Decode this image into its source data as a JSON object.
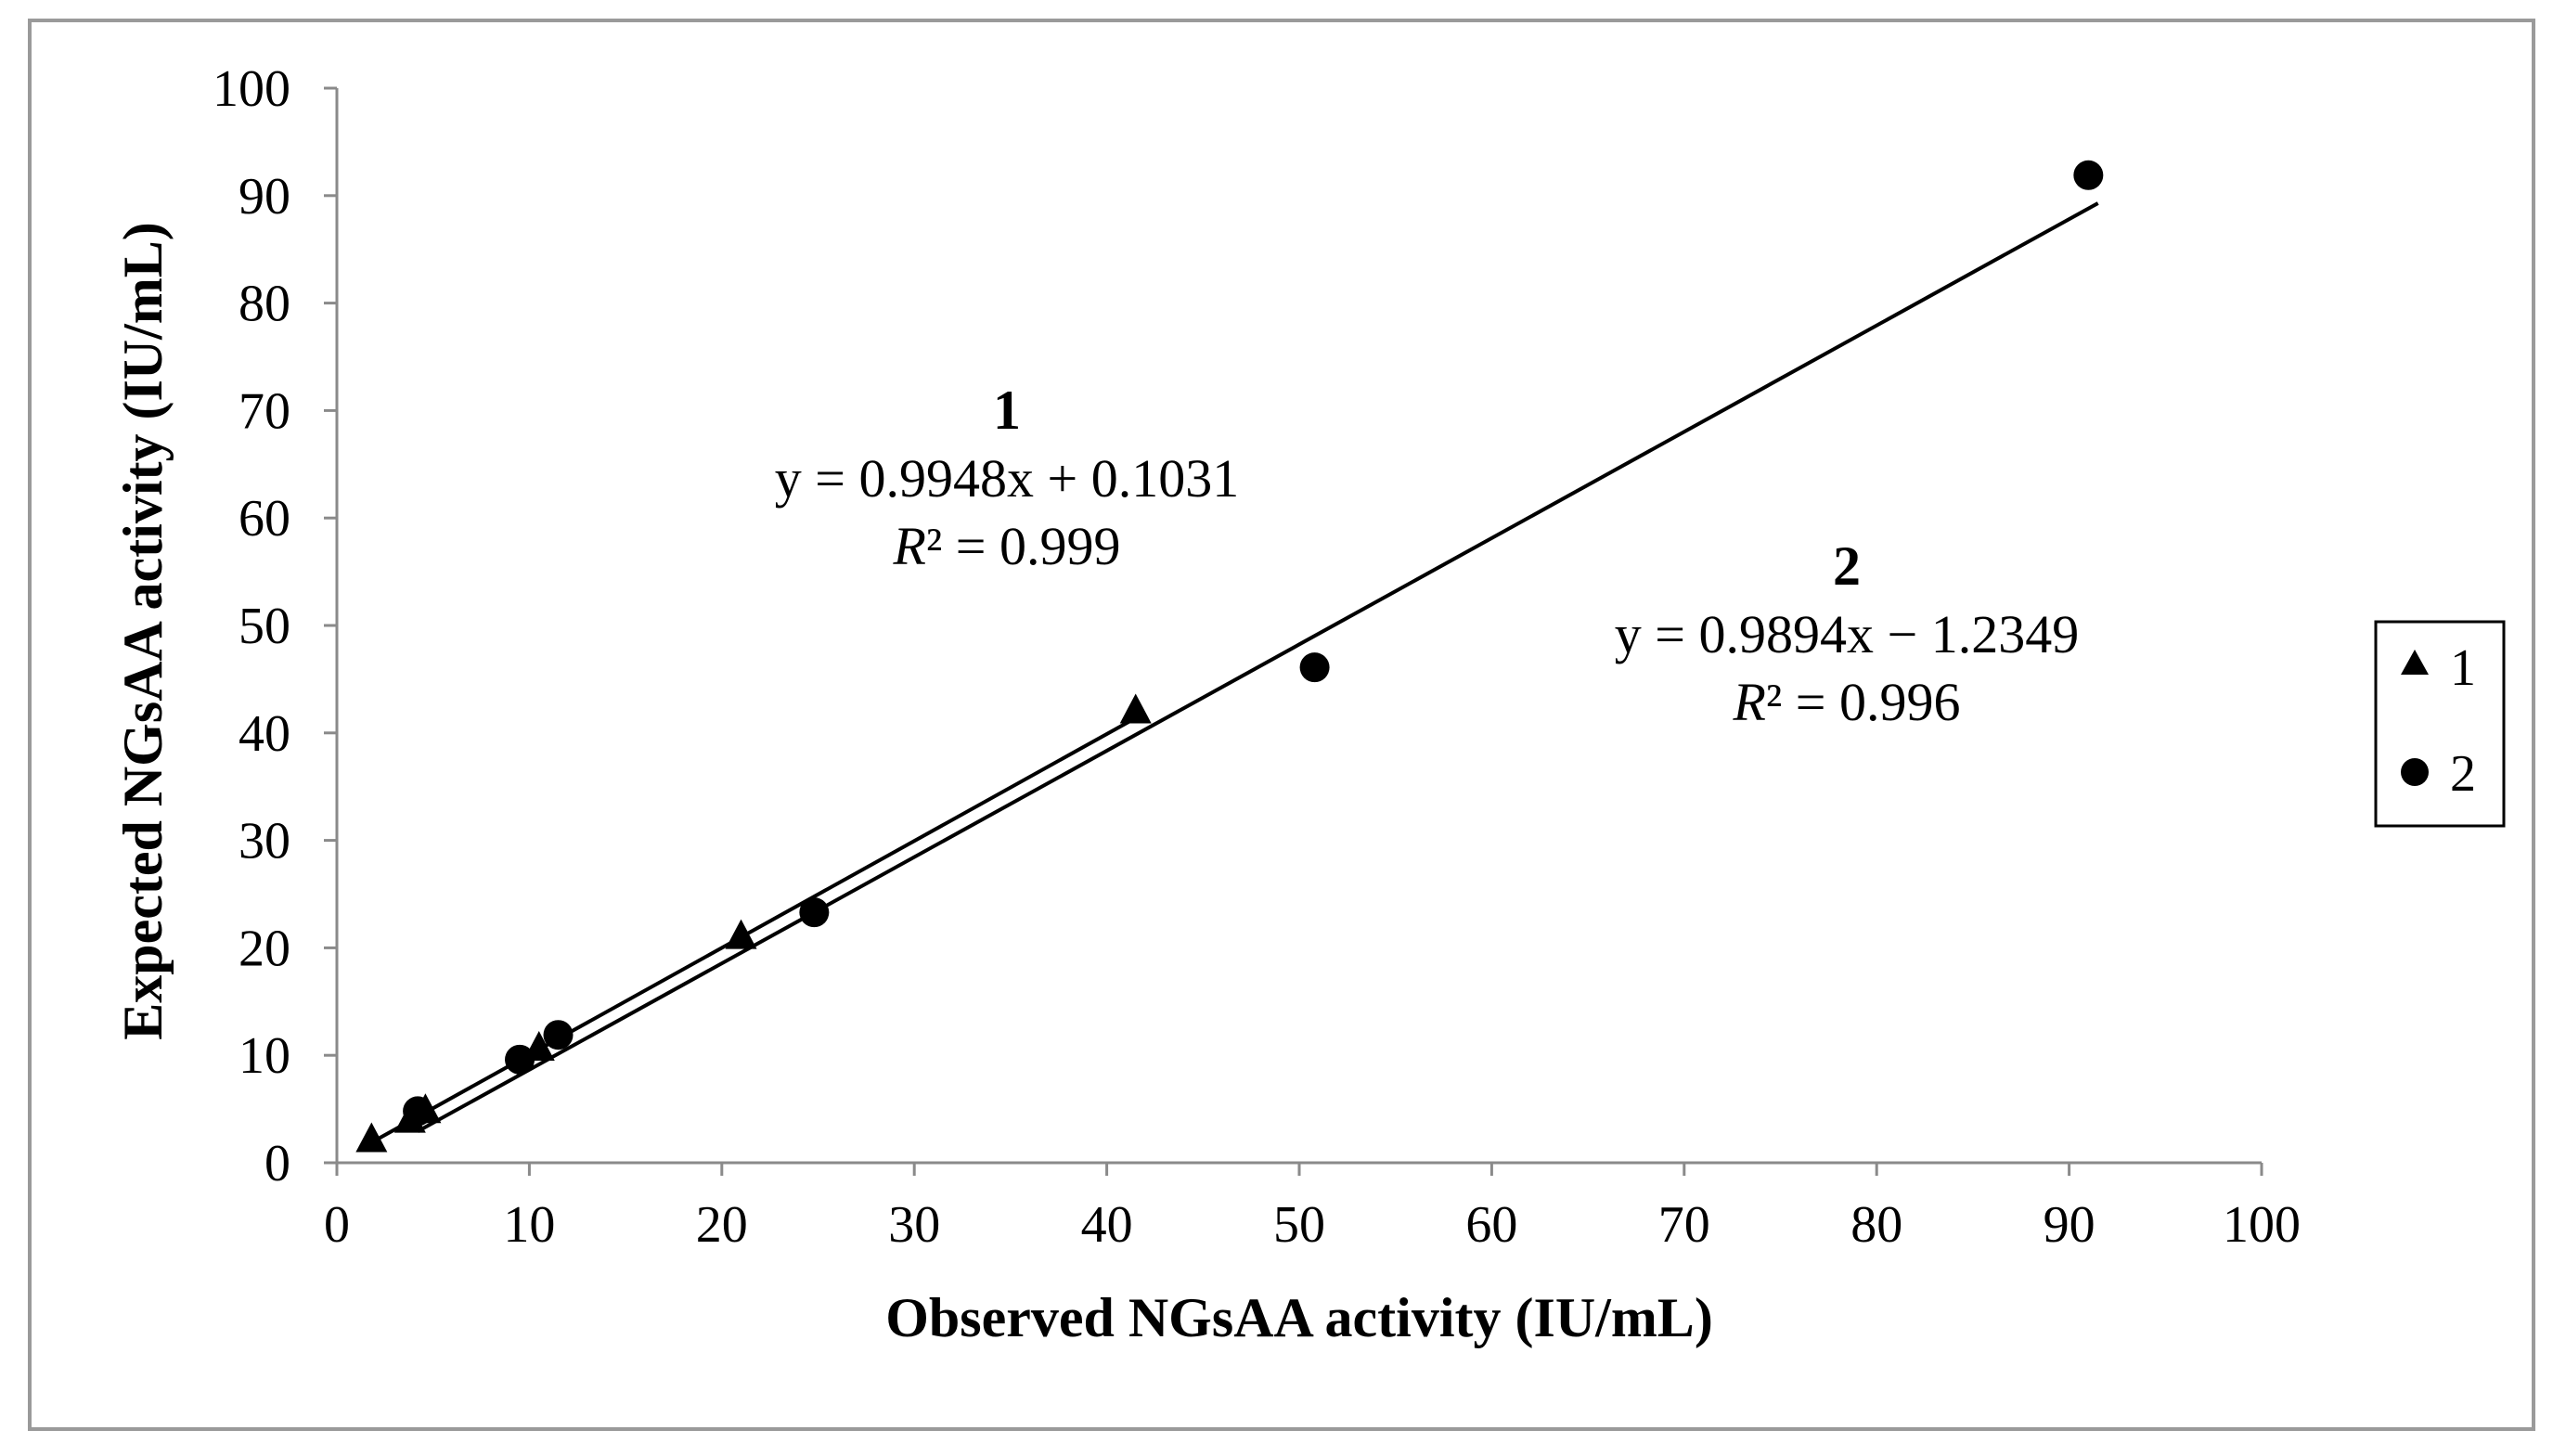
{
  "chart_data": {
    "type": "scatter",
    "xlabel": "Observed  NGsAA activity  (IU/mL)",
    "ylabel": "Expected  NGsAA  activity  (IU/mL)",
    "xlim": [
      0,
      100
    ],
    "ylim": [
      0,
      100
    ],
    "x_ticks": [
      "0",
      "10",
      "20",
      "30",
      "40",
      "50",
      "60",
      "70",
      "80",
      "90",
      "100"
    ],
    "y_ticks": [
      "0",
      "10",
      "20",
      "30",
      "40",
      "50",
      "60",
      "70",
      "80",
      "90",
      "100"
    ],
    "grid": false,
    "legend_position": "right",
    "series": [
      {
        "name": "1",
        "marker": "triangle",
        "points": [
          [
            1.8,
            2.1
          ],
          [
            3.8,
            3.9
          ],
          [
            4.6,
            4.8
          ],
          [
            10.5,
            10.6
          ],
          [
            21.0,
            21.0
          ],
          [
            41.5,
            42.0
          ]
        ],
        "trendline": {
          "x_range": [
            1.8,
            41.5
          ],
          "slope": 0.9948,
          "intercept": 0.1031
        },
        "annotation": {
          "label": "1",
          "equation": "y = 0.9948x + 0.1031",
          "r2_symbol": "R",
          "r2_rest": "² = 0.999"
        }
      },
      {
        "name": "2",
        "marker": "circle",
        "points": [
          [
            4.2,
            4.8
          ],
          [
            9.5,
            9.6
          ],
          [
            11.5,
            11.9
          ],
          [
            24.8,
            23.3
          ],
          [
            50.8,
            46.1
          ],
          [
            91.0,
            91.9
          ]
        ],
        "trendline": {
          "x_range": [
            4.2,
            91.5
          ],
          "slope": 0.9894,
          "intercept": -1.2349
        },
        "annotation": {
          "label": "2",
          "equation": "y = 0.9894x − 1.2349",
          "r2_symbol": "R",
          "r2_rest": "² = 0.996"
        }
      }
    ],
    "legend": [
      {
        "marker": "triangle",
        "label": "1"
      },
      {
        "marker": "circle",
        "label": "2"
      }
    ]
  }
}
